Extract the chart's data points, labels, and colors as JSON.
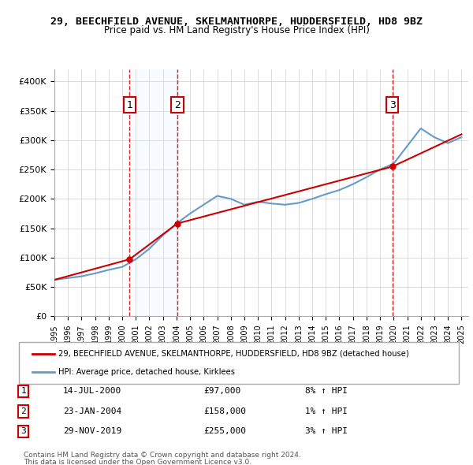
{
  "title_line1": "29, BEECHFIELD AVENUE, SKELMANTHORPE, HUDDERSFIELD, HD8 9BZ",
  "title_line2": "Price paid vs. HM Land Registry's House Price Index (HPI)",
  "ylabel": "",
  "ylim": [
    0,
    420000
  ],
  "yticks": [
    0,
    50000,
    100000,
    150000,
    200000,
    250000,
    300000,
    350000,
    400000
  ],
  "ytick_labels": [
    "£0",
    "£50K",
    "£100K",
    "£150K",
    "£200K",
    "£250K",
    "£300K",
    "£350K",
    "£400K"
  ],
  "legend_line1": "29, BEECHFIELD AVENUE, SKELMANTHORPE, HUDDERSFIELD, HD8 9BZ (detached house)",
  "legend_line2": "HPI: Average price, detached house, Kirklees",
  "transactions": [
    {
      "num": 1,
      "date": "14-JUL-2000",
      "price": 97000,
      "pct": "8%",
      "dir": "↑",
      "year": 2000.54
    },
    {
      "num": 2,
      "date": "23-JAN-2004",
      "price": 158000,
      "pct": "1%",
      "dir": "↑",
      "year": 2004.06
    },
    {
      "num": 3,
      "date": "29-NOV-2019",
      "price": 255000,
      "pct": "3%",
      "dir": "↑",
      "year": 2019.91
    }
  ],
  "footnote1": "Contains HM Land Registry data © Crown copyright and database right 2024.",
  "footnote2": "This data is licensed under the Open Government Licence v3.0.",
  "background_color": "#ffffff",
  "plot_bg_color": "#ffffff",
  "grid_color": "#cccccc",
  "hpi_color": "#6699cc",
  "price_color": "#cc0000",
  "dashed_color": "#cc0000",
  "marker_color": "#cc0000",
  "label_box_color": "#cc0000",
  "shaded_color": "#ddeeff",
  "hpi_data_years": [
    1995,
    1996,
    1997,
    1998,
    1999,
    2000,
    2001,
    2002,
    2003,
    2004,
    2005,
    2006,
    2007,
    2008,
    2009,
    2010,
    2011,
    2012,
    2013,
    2014,
    2015,
    2016,
    2017,
    2018,
    2019,
    2020,
    2021,
    2022,
    2023,
    2024,
    2025
  ],
  "hpi_data_values": [
    62000,
    65000,
    68000,
    73000,
    79000,
    84000,
    97000,
    115000,
    138000,
    158000,
    175000,
    190000,
    205000,
    200000,
    190000,
    195000,
    192000,
    190000,
    193000,
    200000,
    208000,
    215000,
    225000,
    237000,
    250000,
    260000,
    290000,
    320000,
    305000,
    295000,
    305000
  ],
  "price_data_years": [
    1995,
    2000.54,
    2004.06,
    2019.91,
    2025
  ],
  "price_data_values": [
    62000,
    97000,
    158000,
    255000,
    310000
  ],
  "xmin": 1995,
  "xmax": 2025.5
}
